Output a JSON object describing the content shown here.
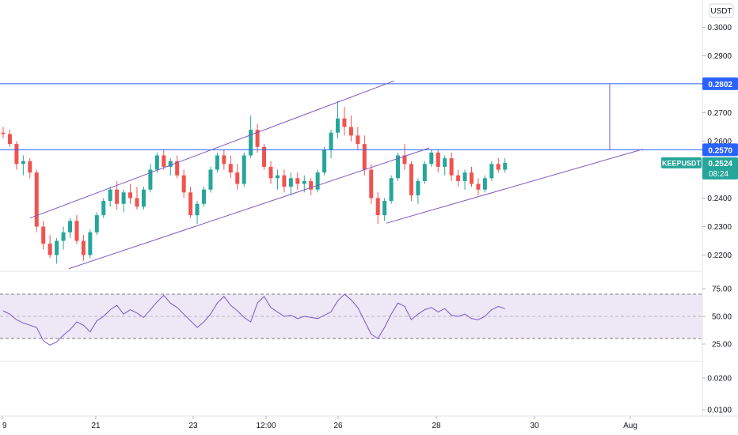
{
  "colors": {
    "up": "#26a69a",
    "down": "#ef5350",
    "level_line": "#2962ff",
    "trend_line": "#7e57c2",
    "rsi_line": "#7e57c2",
    "rsi_band": "#ede7f6",
    "last_price_tag": "#26a69a",
    "level_tag": "#2962ff"
  },
  "currency_button": "USDT",
  "symbol_tag": {
    "symbol": "KEEPUSDT",
    "price": "0.2524",
    "countdown": "08:24"
  },
  "chart_data": [
    {
      "type": "candlestick",
      "symbol": "KEEPUSDT",
      "x_ticks": [
        "9",
        "21",
        "23",
        "12:00",
        "26",
        "28",
        "30",
        "Aug"
      ],
      "y_ticks": [
        "0.3000",
        "0.2900",
        "0.2800",
        "0.2700",
        "0.2600",
        "0.2400",
        "0.2300",
        "0.2200"
      ],
      "ylim": [
        0.2143,
        0.3096
      ],
      "horizontal_levels": [
        {
          "value": 0.2802,
          "label": "0.2802"
        },
        {
          "value": 0.257,
          "label": "0.2570"
        }
      ],
      "last_price": 0.2524,
      "series": [
        {
          "values": [
            [
              0.263,
              0.265,
              0.261,
              0.2625
            ],
            [
              0.2625,
              0.264,
              0.258,
              0.259
            ],
            [
              0.259,
              0.26,
              0.25,
              0.252
            ],
            [
              0.252,
              0.255,
              0.248,
              0.253
            ],
            [
              0.253,
              0.254,
              0.247,
              0.249
            ],
            [
              0.249,
              0.25,
              0.228,
              0.23
            ],
            [
              0.23,
              0.232,
              0.222,
              0.224
            ],
            [
              0.224,
              0.227,
              0.219,
              0.22
            ],
            [
              0.22,
              0.226,
              0.217,
              0.225
            ],
            [
              0.225,
              0.23,
              0.222,
              0.228
            ],
            [
              0.228,
              0.233,
              0.226,
              0.232
            ],
            [
              0.232,
              0.234,
              0.224,
              0.225
            ],
            [
              0.225,
              0.227,
              0.218,
              0.22
            ],
            [
              0.22,
              0.229,
              0.219,
              0.228
            ],
            [
              0.228,
              0.235,
              0.227,
              0.234
            ],
            [
              0.234,
              0.24,
              0.233,
              0.239
            ],
            [
              0.239,
              0.244,
              0.237,
              0.243
            ],
            [
              0.243,
              0.246,
              0.236,
              0.238
            ],
            [
              0.238,
              0.243,
              0.235,
              0.242
            ],
            [
              0.242,
              0.245,
              0.238,
              0.24
            ],
            [
              0.24,
              0.244,
              0.236,
              0.237
            ],
            [
              0.237,
              0.244,
              0.236,
              0.243
            ],
            [
              0.243,
              0.252,
              0.242,
              0.25
            ],
            [
              0.25,
              0.256,
              0.249,
              0.255
            ],
            [
              0.255,
              0.257,
              0.25,
              0.251
            ],
            [
              0.251,
              0.254,
              0.248,
              0.253
            ],
            [
              0.253,
              0.255,
              0.247,
              0.248
            ],
            [
              0.248,
              0.25,
              0.24,
              0.242
            ],
            [
              0.242,
              0.244,
              0.233,
              0.234
            ],
            [
              0.234,
              0.239,
              0.231,
              0.238
            ],
            [
              0.238,
              0.244,
              0.237,
              0.243
            ],
            [
              0.243,
              0.251,
              0.242,
              0.25
            ],
            [
              0.25,
              0.256,
              0.249,
              0.255
            ],
            [
              0.255,
              0.257,
              0.25,
              0.252
            ],
            [
              0.252,
              0.255,
              0.247,
              0.249
            ],
            [
              0.249,
              0.252,
              0.243,
              0.245
            ],
            [
              0.245,
              0.256,
              0.244,
              0.255
            ],
            [
              0.255,
              0.269,
              0.254,
              0.264
            ],
            [
              0.264,
              0.266,
              0.256,
              0.258
            ],
            [
              0.258,
              0.259,
              0.25,
              0.251
            ],
            [
              0.251,
              0.253,
              0.245,
              0.247
            ],
            [
              0.247,
              0.25,
              0.243,
              0.248
            ],
            [
              0.248,
              0.25,
              0.242,
              0.244
            ],
            [
              0.244,
              0.249,
              0.241,
              0.247
            ],
            [
              0.247,
              0.249,
              0.243,
              0.245
            ],
            [
              0.245,
              0.248,
              0.242,
              0.246
            ],
            [
              0.246,
              0.247,
              0.241,
              0.243
            ],
            [
              0.243,
              0.25,
              0.242,
              0.249
            ],
            [
              0.249,
              0.258,
              0.248,
              0.257
            ],
            [
              0.257,
              0.264,
              0.254,
              0.263
            ],
            [
              0.263,
              0.274,
              0.261,
              0.268
            ],
            [
              0.268,
              0.272,
              0.262,
              0.265
            ],
            [
              0.265,
              0.269,
              0.26,
              0.262
            ],
            [
              0.262,
              0.265,
              0.257,
              0.259
            ],
            [
              0.259,
              0.262,
              0.248,
              0.25
            ],
            [
              0.25,
              0.252,
              0.238,
              0.24
            ],
            [
              0.24,
              0.242,
              0.231,
              0.234
            ],
            [
              0.234,
              0.24,
              0.232,
              0.239
            ],
            [
              0.239,
              0.248,
              0.238,
              0.247
            ],
            [
              0.247,
              0.256,
              0.246,
              0.255
            ],
            [
              0.255,
              0.259,
              0.25,
              0.252
            ],
            [
              0.252,
              0.253,
              0.239,
              0.241
            ],
            [
              0.241,
              0.247,
              0.238,
              0.246
            ],
            [
              0.246,
              0.253,
              0.245,
              0.252
            ],
            [
              0.252,
              0.257,
              0.251,
              0.256
            ],
            [
              0.256,
              0.257,
              0.249,
              0.251
            ],
            [
              0.251,
              0.255,
              0.248,
              0.254
            ],
            [
              0.254,
              0.256,
              0.246,
              0.248
            ],
            [
              0.248,
              0.25,
              0.244,
              0.246
            ],
            [
              0.246,
              0.25,
              0.243,
              0.249
            ],
            [
              0.249,
              0.251,
              0.244,
              0.245
            ],
            [
              0.245,
              0.247,
              0.241,
              0.243
            ],
            [
              0.243,
              0.248,
              0.242,
              0.247
            ],
            [
              0.247,
              0.253,
              0.246,
              0.252
            ],
            [
              0.252,
              0.254,
              0.249,
              0.25
            ],
            [
              0.25,
              0.254,
              0.249,
              0.2524
            ]
          ]
        }
      ]
    },
    {
      "type": "line",
      "x_ticks": [
        "9",
        "21",
        "23",
        "12:00",
        "26",
        "28",
        "30",
        "Aug"
      ],
      "y_ticks": [
        "75.00",
        "50.00",
        "25.00"
      ],
      "ylim": [
        10,
        90
      ],
      "band": [
        30,
        70
      ],
      "series": [
        {
          "values": [
            55,
            52,
            47,
            44,
            42,
            40,
            28,
            24,
            27,
            33,
            38,
            45,
            42,
            36,
            46,
            50,
            56,
            60,
            52,
            56,
            53,
            49,
            56,
            63,
            69,
            62,
            58,
            52,
            46,
            40,
            45,
            52,
            62,
            68,
            60,
            55,
            49,
            45,
            62,
            68,
            58,
            54,
            50,
            51,
            48,
            50,
            49,
            48,
            51,
            54,
            64,
            70,
            65,
            58,
            46,
            34,
            30,
            40,
            52,
            62,
            59,
            47,
            52,
            56,
            58,
            54,
            57,
            51,
            50,
            52,
            48,
            47,
            50,
            56,
            59,
            57
          ]
        }
      ]
    },
    {
      "type": "line",
      "x_ticks": [
        "9",
        "21",
        "23",
        "12:00",
        "26",
        "28",
        "30",
        "Aug"
      ],
      "y_ticks": [
        "0.0200",
        "0.0100"
      ],
      "series": []
    }
  ]
}
